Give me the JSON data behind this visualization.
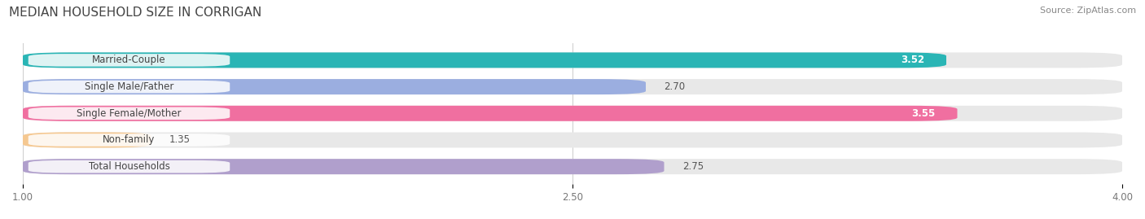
{
  "title": "MEDIAN HOUSEHOLD SIZE IN CORRIGAN",
  "source": "Source: ZipAtlas.com",
  "categories": [
    "Married-Couple",
    "Single Male/Father",
    "Single Female/Mother",
    "Non-family",
    "Total Households"
  ],
  "values": [
    3.52,
    2.7,
    3.55,
    1.35,
    2.75
  ],
  "bar_colors": [
    "#2ab5b5",
    "#9baee0",
    "#f06fa0",
    "#f5c891",
    "#b09fcc"
  ],
  "bar_bg_color": "#e8e8e8",
  "xmin": 1.0,
  "xmax": 4.0,
  "xticks": [
    1.0,
    2.5,
    4.0
  ],
  "label_fontsize": 8.5,
  "value_fontsize": 8.5,
  "title_fontsize": 11,
  "source_fontsize": 8,
  "background_color": "#ffffff"
}
